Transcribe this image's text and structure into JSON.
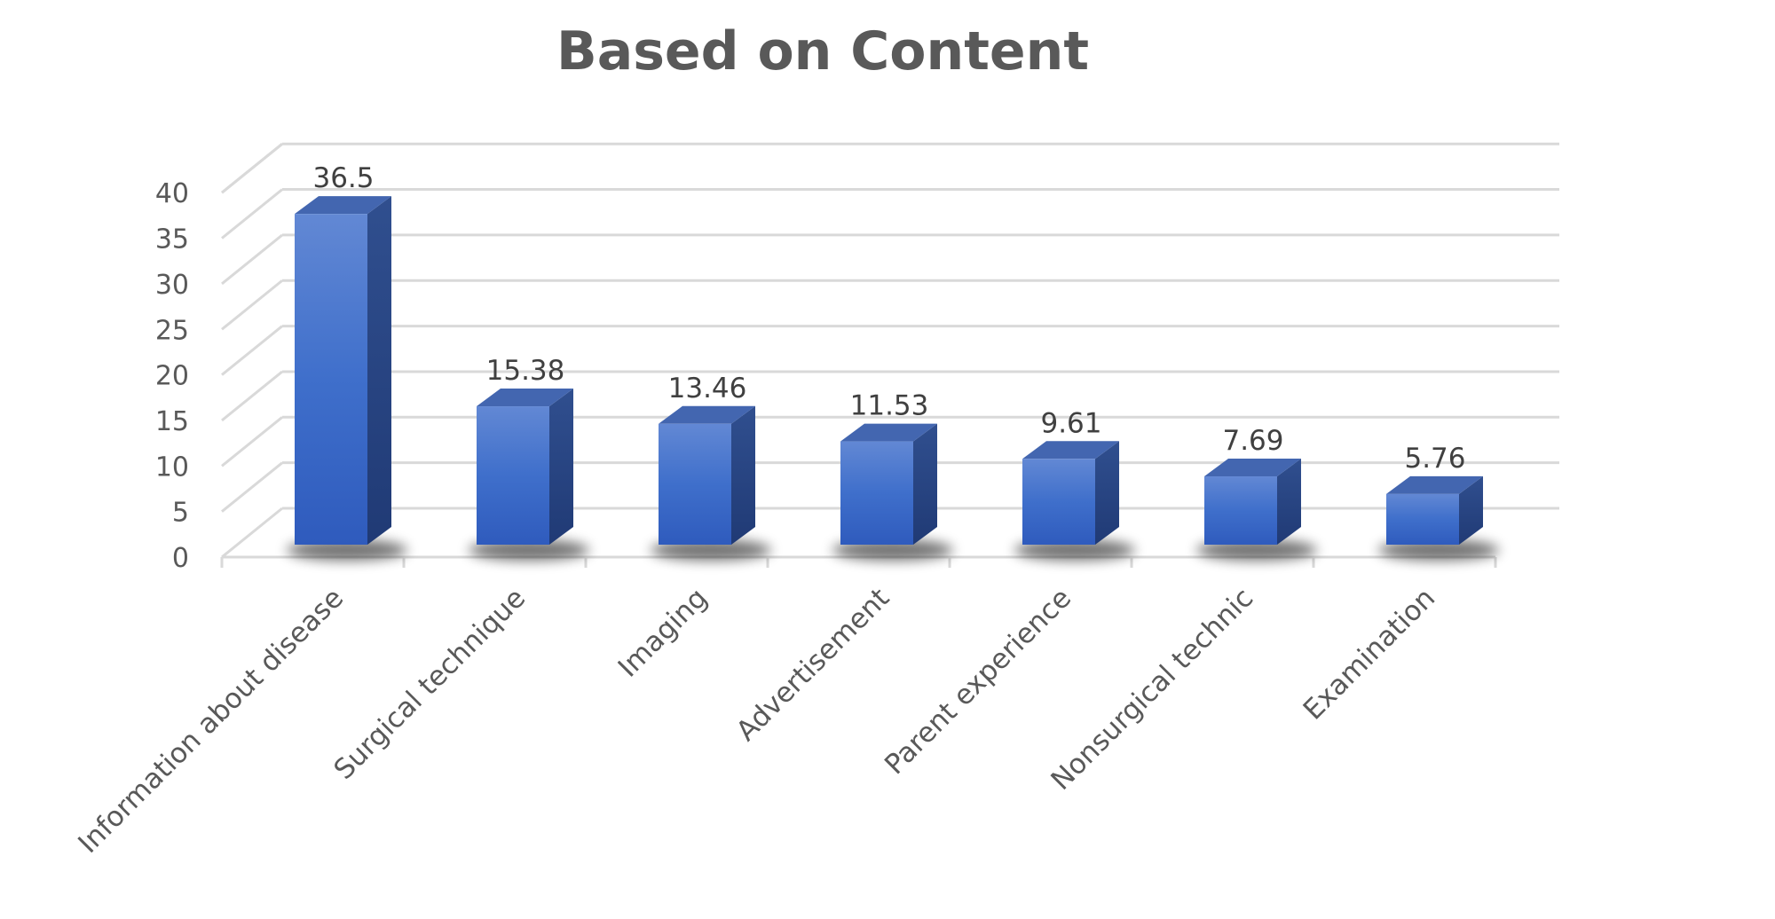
{
  "chart_data": {
    "type": "bar",
    "style": "3d-column",
    "title": "Based on Content",
    "xlabel": "",
    "ylabel": "",
    "categories": [
      "Information about disease",
      "Surgical technique",
      "Imaging",
      "Advertisement",
      "Parent experience",
      "Nonsurgical technic",
      "Examination"
    ],
    "values": [
      36.5,
      15.38,
      13.46,
      11.53,
      9.61,
      7.69,
      5.76
    ],
    "value_labels": [
      "36.5",
      "15.38",
      "13.46",
      "11.53",
      "9.61",
      "7.69",
      "5.76"
    ],
    "ylim": [
      0,
      40
    ],
    "yticks": [
      "0",
      "5",
      "10",
      "15",
      "20",
      "25",
      "30",
      "35",
      "40"
    ],
    "grid": true,
    "legend": "none",
    "colors": {
      "bar_front": "#4472C4",
      "gridline": "#d9d9d9",
      "text": "#595959"
    }
  }
}
